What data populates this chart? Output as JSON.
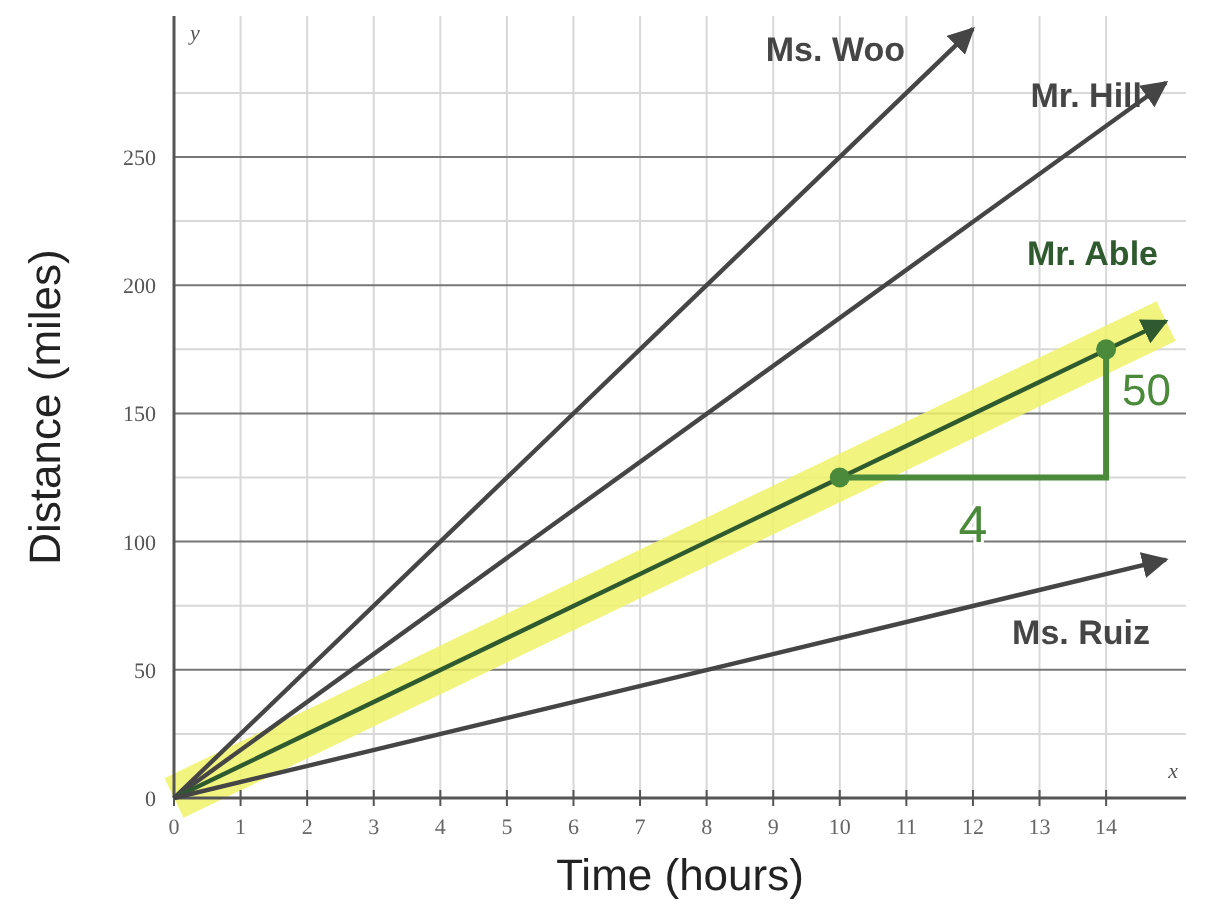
{
  "chart_data": {
    "type": "line",
    "xlabel": "Time (hours)",
    "ylabel": "Distance (miles)",
    "xlim": [
      0,
      15.2
    ],
    "ylim": [
      0,
      305
    ],
    "xticks": [
      0,
      1,
      2,
      3,
      4,
      5,
      6,
      7,
      8,
      9,
      10,
      11,
      12,
      13,
      14
    ],
    "yticks": [
      0,
      50,
      100,
      150,
      200,
      250
    ],
    "grid": true,
    "marker": "none",
    "line_style": "solid",
    "series": [
      {
        "name": "Ms. Woo",
        "color": "#454545",
        "x": [
          0,
          12
        ],
        "values": [
          0,
          300
        ]
      },
      {
        "name": "Mr. Hill",
        "color": "#454545",
        "x": [
          0,
          14.9
        ],
        "values": [
          0,
          279
        ]
      },
      {
        "name": "Mr. Able",
        "color": "#2f5a2f",
        "x": [
          0,
          14.9
        ],
        "values": [
          0,
          186
        ]
      },
      {
        "name": "Ms. Ruiz",
        "color": "#454545",
        "x": [
          0,
          14.9
        ],
        "values": [
          0,
          93
        ]
      },
      {
        "type": "scatter",
        "color": "#4a8a3a",
        "marker": "circle",
        "x": [
          10,
          14
        ],
        "values": [
          125,
          175
        ]
      }
    ],
    "annotations": [
      {
        "text": "50",
        "x": 14,
        "y": 175
      },
      "4",
      "y",
      "x"
    ]
  }
}
